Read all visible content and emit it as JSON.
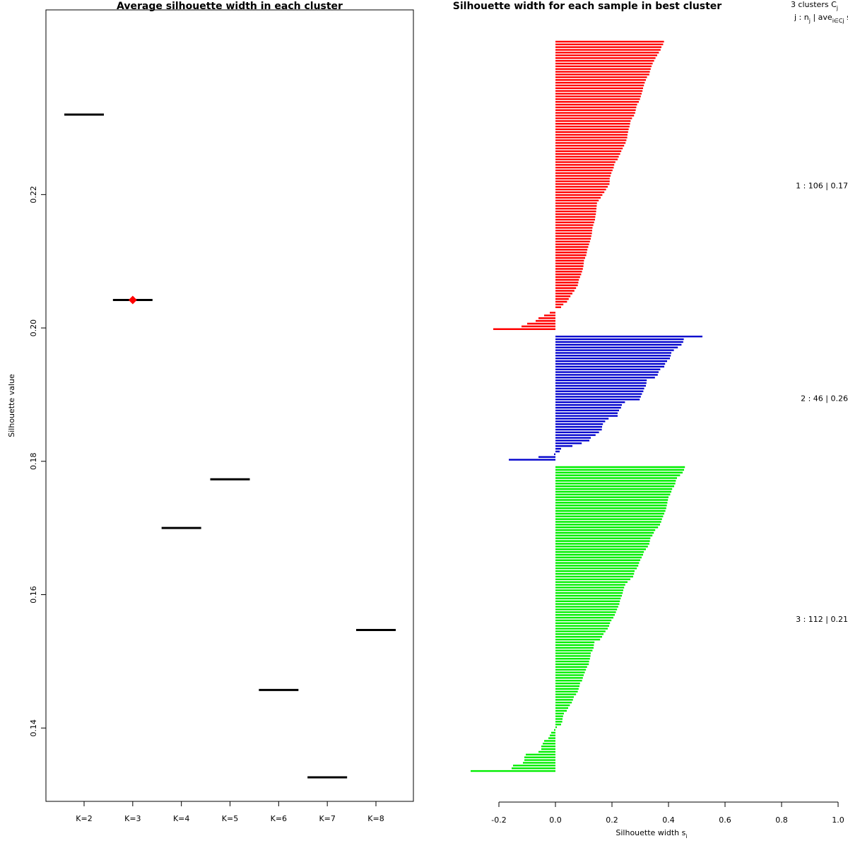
{
  "chart_data": [
    {
      "type": "scatter",
      "title": "Average silhouette width in each cluster",
      "xlabel": "",
      "ylabel": "Silhouette value",
      "categories": [
        "K=2",
        "K=3",
        "K=4",
        "K=5",
        "K=6",
        "K=7",
        "K=8"
      ],
      "values": [
        0.232,
        0.2042,
        0.17,
        0.1773,
        0.1457,
        0.1326,
        0.1547
      ],
      "best_index": 1,
      "highlight_color": "#ff0000",
      "line_color": "#000000",
      "y_ticks": [
        0.14,
        0.16,
        0.18,
        0.2,
        0.22
      ],
      "y_tick_labels": [
        "0.14",
        "0.16",
        "0.18",
        "0.20",
        "0.22"
      ],
      "ylim": [
        0.129,
        0.2477
      ],
      "grid": false
    },
    {
      "type": "bar",
      "title": "Silhouette width for each sample in best cluster",
      "xlabel": "Silhouette width s",
      "xlabel_sub": "i",
      "xlim": [
        -0.25,
        1.0
      ],
      "x_ticks": [
        -0.2,
        0.0,
        0.2,
        0.4,
        0.6,
        0.8,
        1.0
      ],
      "x_tick_labels": [
        "-0.2",
        "0.0",
        "0.2",
        "0.4",
        "0.6",
        "0.8",
        "1.0"
      ],
      "grid": false,
      "legend_header": {
        "line1": "3  clusters  C",
        "line1_sub": "j",
        "line2_a": "j :  n",
        "line2_sub1": "j",
        "line2_b": " | ave",
        "line2_sub2": "i∈Cj",
        "line2_c": "  s",
        "line2_sub3": "i"
      },
      "series": [
        {
          "name": "1 :  106  |  0.17",
          "color": "#ff0000",
          "values": [
            0.384,
            0.381,
            0.375,
            0.372,
            0.366,
            0.36,
            0.354,
            0.349,
            0.344,
            0.34,
            0.337,
            0.334,
            0.332,
            0.324,
            0.32,
            0.316,
            0.313,
            0.31,
            0.308,
            0.305,
            0.302,
            0.299,
            0.295,
            0.289,
            0.286,
            0.284,
            0.282,
            0.278,
            0.271,
            0.266,
            0.264,
            0.262,
            0.259,
            0.257,
            0.255,
            0.254,
            0.251,
            0.248,
            0.243,
            0.238,
            0.233,
            0.229,
            0.224,
            0.22,
            0.212,
            0.208,
            0.206,
            0.202,
            0.198,
            0.195,
            0.192,
            0.192,
            0.191,
            0.185,
            0.179,
            0.173,
            0.166,
            0.16,
            0.153,
            0.147,
            0.146,
            0.145,
            0.144,
            0.143,
            0.141,
            0.14,
            0.137,
            0.134,
            0.131,
            0.13,
            0.129,
            0.127,
            0.125,
            0.122,
            0.119,
            0.116,
            0.113,
            0.111,
            0.109,
            0.105,
            0.101,
            0.1,
            0.099,
            0.097,
            0.094,
            0.091,
            0.087,
            0.083,
            0.081,
            0.079,
            0.073,
            0.067,
            0.06,
            0.053,
            0.047,
            0.041,
            0.028,
            0.02,
            0.0,
            -0.02,
            -0.04,
            -0.06,
            -0.07,
            -0.1,
            -0.12,
            -0.22
          ]
        },
        {
          "name": "2 :  46  |  0.26",
          "color": "#0000cd",
          "values": [
            0.52,
            0.454,
            0.452,
            0.446,
            0.433,
            0.419,
            0.41,
            0.408,
            0.405,
            0.395,
            0.388,
            0.385,
            0.371,
            0.365,
            0.362,
            0.352,
            0.323,
            0.322,
            0.32,
            0.314,
            0.311,
            0.306,
            0.302,
            0.298,
            0.246,
            0.235,
            0.232,
            0.225,
            0.22,
            0.22,
            0.188,
            0.176,
            0.168,
            0.165,
            0.164,
            0.154,
            0.142,
            0.125,
            0.12,
            0.093,
            0.06,
            0.02,
            0.015,
            -0.005,
            -0.06,
            -0.165
          ]
        },
        {
          "name": "3 :  112  |  0.21",
          "color": "#00ee00",
          "values": [
            0.458,
            0.455,
            0.45,
            0.441,
            0.43,
            0.426,
            0.424,
            0.42,
            0.413,
            0.41,
            0.406,
            0.4,
            0.398,
            0.396,
            0.394,
            0.392,
            0.389,
            0.385,
            0.381,
            0.377,
            0.374,
            0.37,
            0.363,
            0.353,
            0.348,
            0.343,
            0.336,
            0.334,
            0.332,
            0.327,
            0.32,
            0.313,
            0.31,
            0.305,
            0.3,
            0.296,
            0.293,
            0.288,
            0.28,
            0.278,
            0.275,
            0.265,
            0.255,
            0.247,
            0.243,
            0.24,
            0.238,
            0.235,
            0.231,
            0.228,
            0.226,
            0.222,
            0.218,
            0.214,
            0.21,
            0.205,
            0.198,
            0.193,
            0.19,
            0.185,
            0.177,
            0.17,
            0.165,
            0.158,
            0.138,
            0.136,
            0.135,
            0.131,
            0.125,
            0.124,
            0.122,
            0.119,
            0.118,
            0.112,
            0.108,
            0.104,
            0.1,
            0.097,
            0.094,
            0.087,
            0.085,
            0.082,
            0.079,
            0.073,
            0.065,
            0.062,
            0.058,
            0.051,
            0.045,
            0.04,
            0.03,
            0.027,
            0.025,
            0.024,
            0.02,
            0.005,
            -0.005,
            -0.015,
            -0.02,
            -0.025,
            -0.04,
            -0.045,
            -0.05,
            -0.05,
            -0.06,
            -0.105,
            -0.11,
            -0.11,
            -0.115,
            -0.15,
            -0.155,
            -0.3
          ]
        }
      ]
    }
  ]
}
